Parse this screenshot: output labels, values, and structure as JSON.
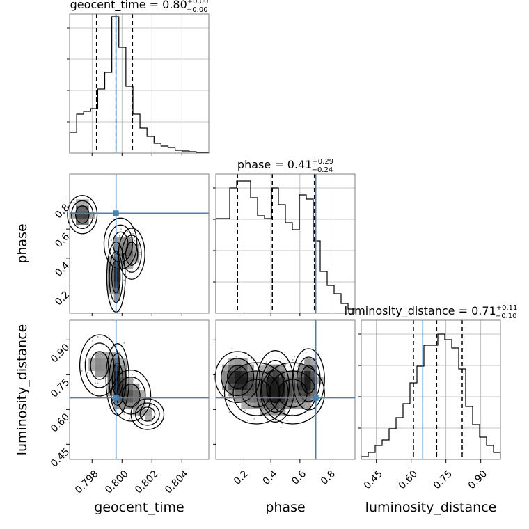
{
  "chart_data": {
    "type": "corner",
    "colors": {
      "truth": "#4682b4",
      "histogram": "#000000",
      "contour": "#000000",
      "grid": "#b0b0b0",
      "density_dark": "#222222",
      "density_light": "#d8d8d8"
    },
    "parameters": [
      {
        "name": "geocent_time",
        "xlabel": "geocent_time",
        "ylabel": "",
        "title_prefix": "geocent_time = 0.80",
        "title_plus": "+0.00",
        "title_minus": "−0.00",
        "range": [
          0.7965,
          0.8058
        ],
        "ticks": [
          0.798,
          0.8,
          0.802,
          0.804
        ],
        "tick_labels": [
          "0.798",
          "0.800",
          "0.802",
          "0.804"
        ],
        "truth": 0.7996,
        "quantiles": [
          0.7983,
          0.7996,
          0.8007
        ],
        "hist_x": [
          0.7965,
          0.79697,
          0.79744,
          0.79791,
          0.79838,
          0.79885,
          0.79932,
          0.79979,
          0.80026,
          0.80073,
          0.8012,
          0.80167,
          0.80214,
          0.80261,
          0.80308,
          0.80355,
          0.80402,
          0.80449,
          0.80496,
          0.80543,
          0.8058
        ],
        "hist_y": [
          0.15,
          0.28,
          0.3,
          0.32,
          0.46,
          0.58,
          0.98,
          0.76,
          0.48,
          0.28,
          0.18,
          0.12,
          0.07,
          0.05,
          0.04,
          0.02,
          0.015,
          0.01,
          0.005,
          0.003
        ]
      },
      {
        "name": "phase",
        "xlabel": "phase",
        "ylabel": "phase",
        "title_prefix": "phase = 0.41",
        "title_plus": "+0.29",
        "title_minus": "−0.24",
        "range": [
          0.02,
          0.98
        ],
        "ticks": [
          0.2,
          0.4,
          0.6,
          0.8
        ],
        "tick_labels": [
          "0.2",
          "0.4",
          "0.6",
          "0.8"
        ],
        "truth": 0.71,
        "quantiles": [
          0.17,
          0.41,
          0.7
        ],
        "hist_x": [
          0.02,
          0.068,
          0.116,
          0.164,
          0.212,
          0.26,
          0.308,
          0.356,
          0.404,
          0.452,
          0.5,
          0.548,
          0.596,
          0.644,
          0.692,
          0.74,
          0.788,
          0.836,
          0.884,
          0.932,
          0.98
        ],
        "hist_y": [
          0.68,
          0.68,
          0.9,
          0.95,
          0.95,
          0.83,
          0.7,
          0.68,
          0.9,
          0.78,
          0.65,
          0.6,
          0.85,
          0.82,
          0.52,
          0.3,
          0.2,
          0.14,
          0.07,
          0.03
        ]
      },
      {
        "name": "luminosity_distance",
        "xlabel": "luminosity_distance",
        "ylabel": "luminosity_distance",
        "title_prefix": "luminosity_distance = 0.71",
        "title_plus": "+0.11",
        "title_minus": "−0.10",
        "range": [
          0.385,
          0.985
        ],
        "ticks": [
          0.45,
          0.6,
          0.75,
          0.9
        ],
        "tick_labels": [
          "0.45",
          "0.60",
          "0.75",
          "0.90"
        ],
        "truth": 0.65,
        "quantiles": [
          0.61,
          0.71,
          0.82
        ],
        "hist_x": [
          0.385,
          0.415,
          0.445,
          0.475,
          0.505,
          0.535,
          0.565,
          0.595,
          0.625,
          0.655,
          0.685,
          0.715,
          0.745,
          0.775,
          0.805,
          0.835,
          0.865,
          0.895,
          0.925,
          0.955,
          0.985
        ],
        "hist_y": [
          0.02,
          0.05,
          0.1,
          0.14,
          0.22,
          0.3,
          0.4,
          0.55,
          0.67,
          0.82,
          0.82,
          0.9,
          0.86,
          0.8,
          0.65,
          0.38,
          0.25,
          0.16,
          0.1,
          0.05
        ]
      }
    ],
    "density_2d": [
      {
        "x": "geocent_time",
        "y": "phase",
        "blobs": [
          {
            "cx": 0.79735,
            "cy": 0.7,
            "sx": 0.00045,
            "sy": 0.06,
            "w": 0.9
          },
          {
            "cx": 0.7996,
            "cy": 0.27,
            "sx": 0.00028,
            "sy": 0.11,
            "w": 1.0
          },
          {
            "cx": 0.80065,
            "cy": 0.43,
            "sx": 0.0004,
            "sy": 0.08,
            "w": 0.55
          },
          {
            "cx": 0.7999,
            "cy": 0.5,
            "sx": 0.0005,
            "sy": 0.08,
            "w": 0.35
          }
        ]
      },
      {
        "x": "geocent_time",
        "y": "luminosity_distance",
        "blobs": [
          {
            "cx": 0.7997,
            "cy": 0.73,
            "sx": 0.00035,
            "sy": 0.07,
            "w": 1.0
          },
          {
            "cx": 0.8006,
            "cy": 0.66,
            "sx": 0.0006,
            "sy": 0.05,
            "w": 0.7
          },
          {
            "cx": 0.7985,
            "cy": 0.79,
            "sx": 0.0006,
            "sy": 0.06,
            "w": 0.5
          },
          {
            "cx": 0.8017,
            "cy": 0.58,
            "sx": 0.0005,
            "sy": 0.03,
            "w": 0.35
          }
        ]
      },
      {
        "x": "phase",
        "y": "luminosity_distance",
        "blobs": [
          {
            "cx": 0.17,
            "cy": 0.74,
            "sx": 0.07,
            "sy": 0.05,
            "w": 1.0
          },
          {
            "cx": 0.43,
            "cy": 0.7,
            "sx": 0.06,
            "sy": 0.07,
            "w": 0.85
          },
          {
            "cx": 0.66,
            "cy": 0.73,
            "sx": 0.05,
            "sy": 0.06,
            "w": 0.9
          },
          {
            "cx": 0.3,
            "cy": 0.67,
            "sx": 0.1,
            "sy": 0.06,
            "w": 0.55
          },
          {
            "cx": 0.55,
            "cy": 0.67,
            "sx": 0.1,
            "sy": 0.06,
            "w": 0.5
          }
        ]
      }
    ]
  }
}
